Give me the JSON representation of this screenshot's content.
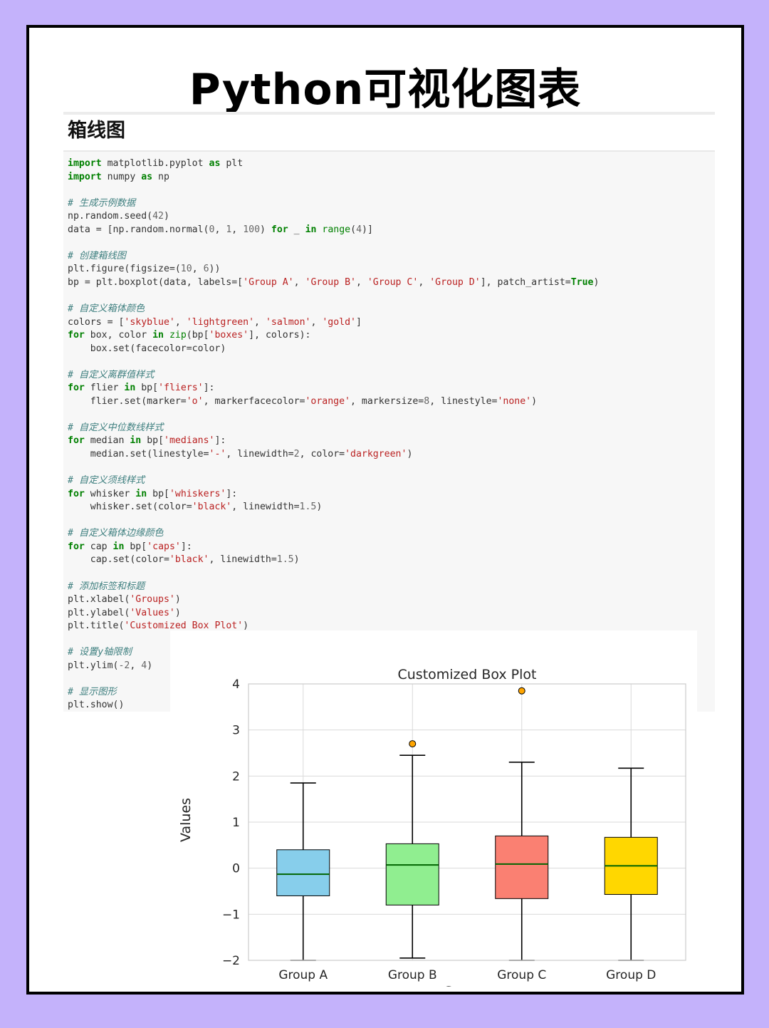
{
  "header": {
    "title": "Python可视化图表",
    "section": "箱线图"
  },
  "code": {
    "lines": [
      [
        [
          "kw",
          "import"
        ],
        [
          "t",
          " matplotlib.pyplot "
        ],
        [
          "kw",
          "as"
        ],
        [
          "t",
          " plt"
        ]
      ],
      [
        [
          "kw",
          "import"
        ],
        [
          "t",
          " numpy "
        ],
        [
          "kw",
          "as"
        ],
        [
          "t",
          " np"
        ]
      ],
      [],
      [
        [
          "cm",
          "# 生成示例数据"
        ]
      ],
      [
        [
          "t",
          "np.random.seed("
        ],
        [
          "nm",
          "42"
        ],
        [
          "t",
          ")"
        ]
      ],
      [
        [
          "t",
          "data = [np.random.normal("
        ],
        [
          "nm",
          "0"
        ],
        [
          "t",
          ", "
        ],
        [
          "nm",
          "1"
        ],
        [
          "t",
          ", "
        ],
        [
          "nm",
          "100"
        ],
        [
          "t",
          ") "
        ],
        [
          "kw",
          "for"
        ],
        [
          "t",
          " _ "
        ],
        [
          "kw",
          "in"
        ],
        [
          "t",
          " "
        ],
        [
          "bi",
          "range"
        ],
        [
          "t",
          "("
        ],
        [
          "nm",
          "4"
        ],
        [
          "t",
          ")]"
        ]
      ],
      [],
      [
        [
          "cm",
          "# 创建箱线图"
        ]
      ],
      [
        [
          "t",
          "plt.figure(figsize=("
        ],
        [
          "nm",
          "10"
        ],
        [
          "t",
          ", "
        ],
        [
          "nm",
          "6"
        ],
        [
          "t",
          "))"
        ]
      ],
      [
        [
          "t",
          "bp = plt.boxplot(data, labels=["
        ],
        [
          "st",
          "'Group A'"
        ],
        [
          "t",
          ", "
        ],
        [
          "st",
          "'Group B'"
        ],
        [
          "t",
          ", "
        ],
        [
          "st",
          "'Group C'"
        ],
        [
          "t",
          ", "
        ],
        [
          "st",
          "'Group D'"
        ],
        [
          "t",
          "], patch_artist="
        ],
        [
          "kw",
          "True"
        ],
        [
          "t",
          ")"
        ]
      ],
      [],
      [
        [
          "cm",
          "# 自定义箱体颜色"
        ]
      ],
      [
        [
          "t",
          "colors = ["
        ],
        [
          "st",
          "'skyblue'"
        ],
        [
          "t",
          ", "
        ],
        [
          "st",
          "'lightgreen'"
        ],
        [
          "t",
          ", "
        ],
        [
          "st",
          "'salmon'"
        ],
        [
          "t",
          ", "
        ],
        [
          "st",
          "'gold'"
        ],
        [
          "t",
          "]"
        ]
      ],
      [
        [
          "kw",
          "for"
        ],
        [
          "t",
          " box, color "
        ],
        [
          "kw",
          "in"
        ],
        [
          "t",
          " "
        ],
        [
          "bi",
          "zip"
        ],
        [
          "t",
          "(bp["
        ],
        [
          "st",
          "'boxes'"
        ],
        [
          "t",
          "], colors):"
        ]
      ],
      [
        [
          "t",
          "    box.set(facecolor=color)"
        ]
      ],
      [],
      [
        [
          "cm",
          "# 自定义离群值样式"
        ]
      ],
      [
        [
          "kw",
          "for"
        ],
        [
          "t",
          " flier "
        ],
        [
          "kw",
          "in"
        ],
        [
          "t",
          " bp["
        ],
        [
          "st",
          "'fliers'"
        ],
        [
          "t",
          "]:"
        ]
      ],
      [
        [
          "t",
          "    flier.set(marker="
        ],
        [
          "st",
          "'o'"
        ],
        [
          "t",
          ", markerfacecolor="
        ],
        [
          "st",
          "'orange'"
        ],
        [
          "t",
          ", markersize="
        ],
        [
          "nm",
          "8"
        ],
        [
          "t",
          ", linestyle="
        ],
        [
          "st",
          "'none'"
        ],
        [
          "t",
          ")"
        ]
      ],
      [],
      [
        [
          "cm",
          "# 自定义中位数线样式"
        ]
      ],
      [
        [
          "kw",
          "for"
        ],
        [
          "t",
          " median "
        ],
        [
          "kw",
          "in"
        ],
        [
          "t",
          " bp["
        ],
        [
          "st",
          "'medians'"
        ],
        [
          "t",
          "]:"
        ]
      ],
      [
        [
          "t",
          "    median.set(linestyle="
        ],
        [
          "st",
          "'-'"
        ],
        [
          "t",
          ", linewidth="
        ],
        [
          "nm",
          "2"
        ],
        [
          "t",
          ", color="
        ],
        [
          "st",
          "'darkgreen'"
        ],
        [
          "t",
          ")"
        ]
      ],
      [],
      [
        [
          "cm",
          "# 自定义须线样式"
        ]
      ],
      [
        [
          "kw",
          "for"
        ],
        [
          "t",
          " whisker "
        ],
        [
          "kw",
          "in"
        ],
        [
          "t",
          " bp["
        ],
        [
          "st",
          "'whiskers'"
        ],
        [
          "t",
          "]:"
        ]
      ],
      [
        [
          "t",
          "    whisker.set(color="
        ],
        [
          "st",
          "'black'"
        ],
        [
          "t",
          ", linewidth="
        ],
        [
          "nm",
          "1.5"
        ],
        [
          "t",
          ")"
        ]
      ],
      [],
      [
        [
          "cm",
          "# 自定义箱体边缘颜色"
        ]
      ],
      [
        [
          "kw",
          "for"
        ],
        [
          "t",
          " cap "
        ],
        [
          "kw",
          "in"
        ],
        [
          "t",
          " bp["
        ],
        [
          "st",
          "'caps'"
        ],
        [
          "t",
          "]:"
        ]
      ],
      [
        [
          "t",
          "    cap.set(color="
        ],
        [
          "st",
          "'black'"
        ],
        [
          "t",
          ", linewidth="
        ],
        [
          "nm",
          "1.5"
        ],
        [
          "t",
          ")"
        ]
      ],
      [],
      [
        [
          "cm",
          "# 添加标签和标题"
        ]
      ],
      [
        [
          "t",
          "plt.xlabel("
        ],
        [
          "st",
          "'Groups'"
        ],
        [
          "t",
          ")"
        ]
      ],
      [
        [
          "t",
          "plt.ylabel("
        ],
        [
          "st",
          "'Values'"
        ],
        [
          "t",
          ")"
        ]
      ],
      [
        [
          "t",
          "plt.title("
        ],
        [
          "st",
          "'Customized Box Plot'"
        ],
        [
          "t",
          ")"
        ]
      ],
      [],
      [
        [
          "cm",
          "# 设置y轴限制"
        ]
      ],
      [
        [
          "t",
          "plt.ylim("
        ],
        [
          "nm",
          "-2"
        ],
        [
          "t",
          ", "
        ],
        [
          "nm",
          "4"
        ],
        [
          "t",
          ")"
        ]
      ],
      [],
      [
        [
          "cm",
          "# 显示图形"
        ]
      ],
      [
        [
          "t",
          "plt.show()"
        ]
      ]
    ]
  },
  "chart_data": {
    "type": "box",
    "title": "Customized Box Plot",
    "xlabel": "Groups",
    "ylabel": "Values",
    "ylim": [
      -2,
      4
    ],
    "yticks": [
      "−2",
      "−1",
      "0",
      "1",
      "2",
      "3",
      "4"
    ],
    "grid": true,
    "categories": [
      "Group A",
      "Group B",
      "Group C",
      "Group D"
    ],
    "boxes": [
      {
        "whisker_low": -2.0,
        "q1": -0.6,
        "median": -0.13,
        "q3": 0.4,
        "whisker_high": 1.85,
        "outliers": [],
        "color": "#87ceeb"
      },
      {
        "whisker_low": -1.95,
        "q1": -0.8,
        "median": 0.07,
        "q3": 0.53,
        "whisker_high": 2.45,
        "outliers": [
          2.7
        ],
        "color": "#90ee90"
      },
      {
        "whisker_low": -2.0,
        "q1": -0.66,
        "median": 0.09,
        "q3": 0.7,
        "whisker_high": 2.3,
        "outliers": [
          3.85
        ],
        "color": "#fa8072"
      },
      {
        "whisker_low": -2.0,
        "q1": -0.57,
        "median": 0.05,
        "q3": 0.67,
        "whisker_high": 2.17,
        "outliers": [],
        "color": "#ffd700"
      }
    ],
    "median_color": "#006400",
    "outlier_color": "#ffa500"
  }
}
